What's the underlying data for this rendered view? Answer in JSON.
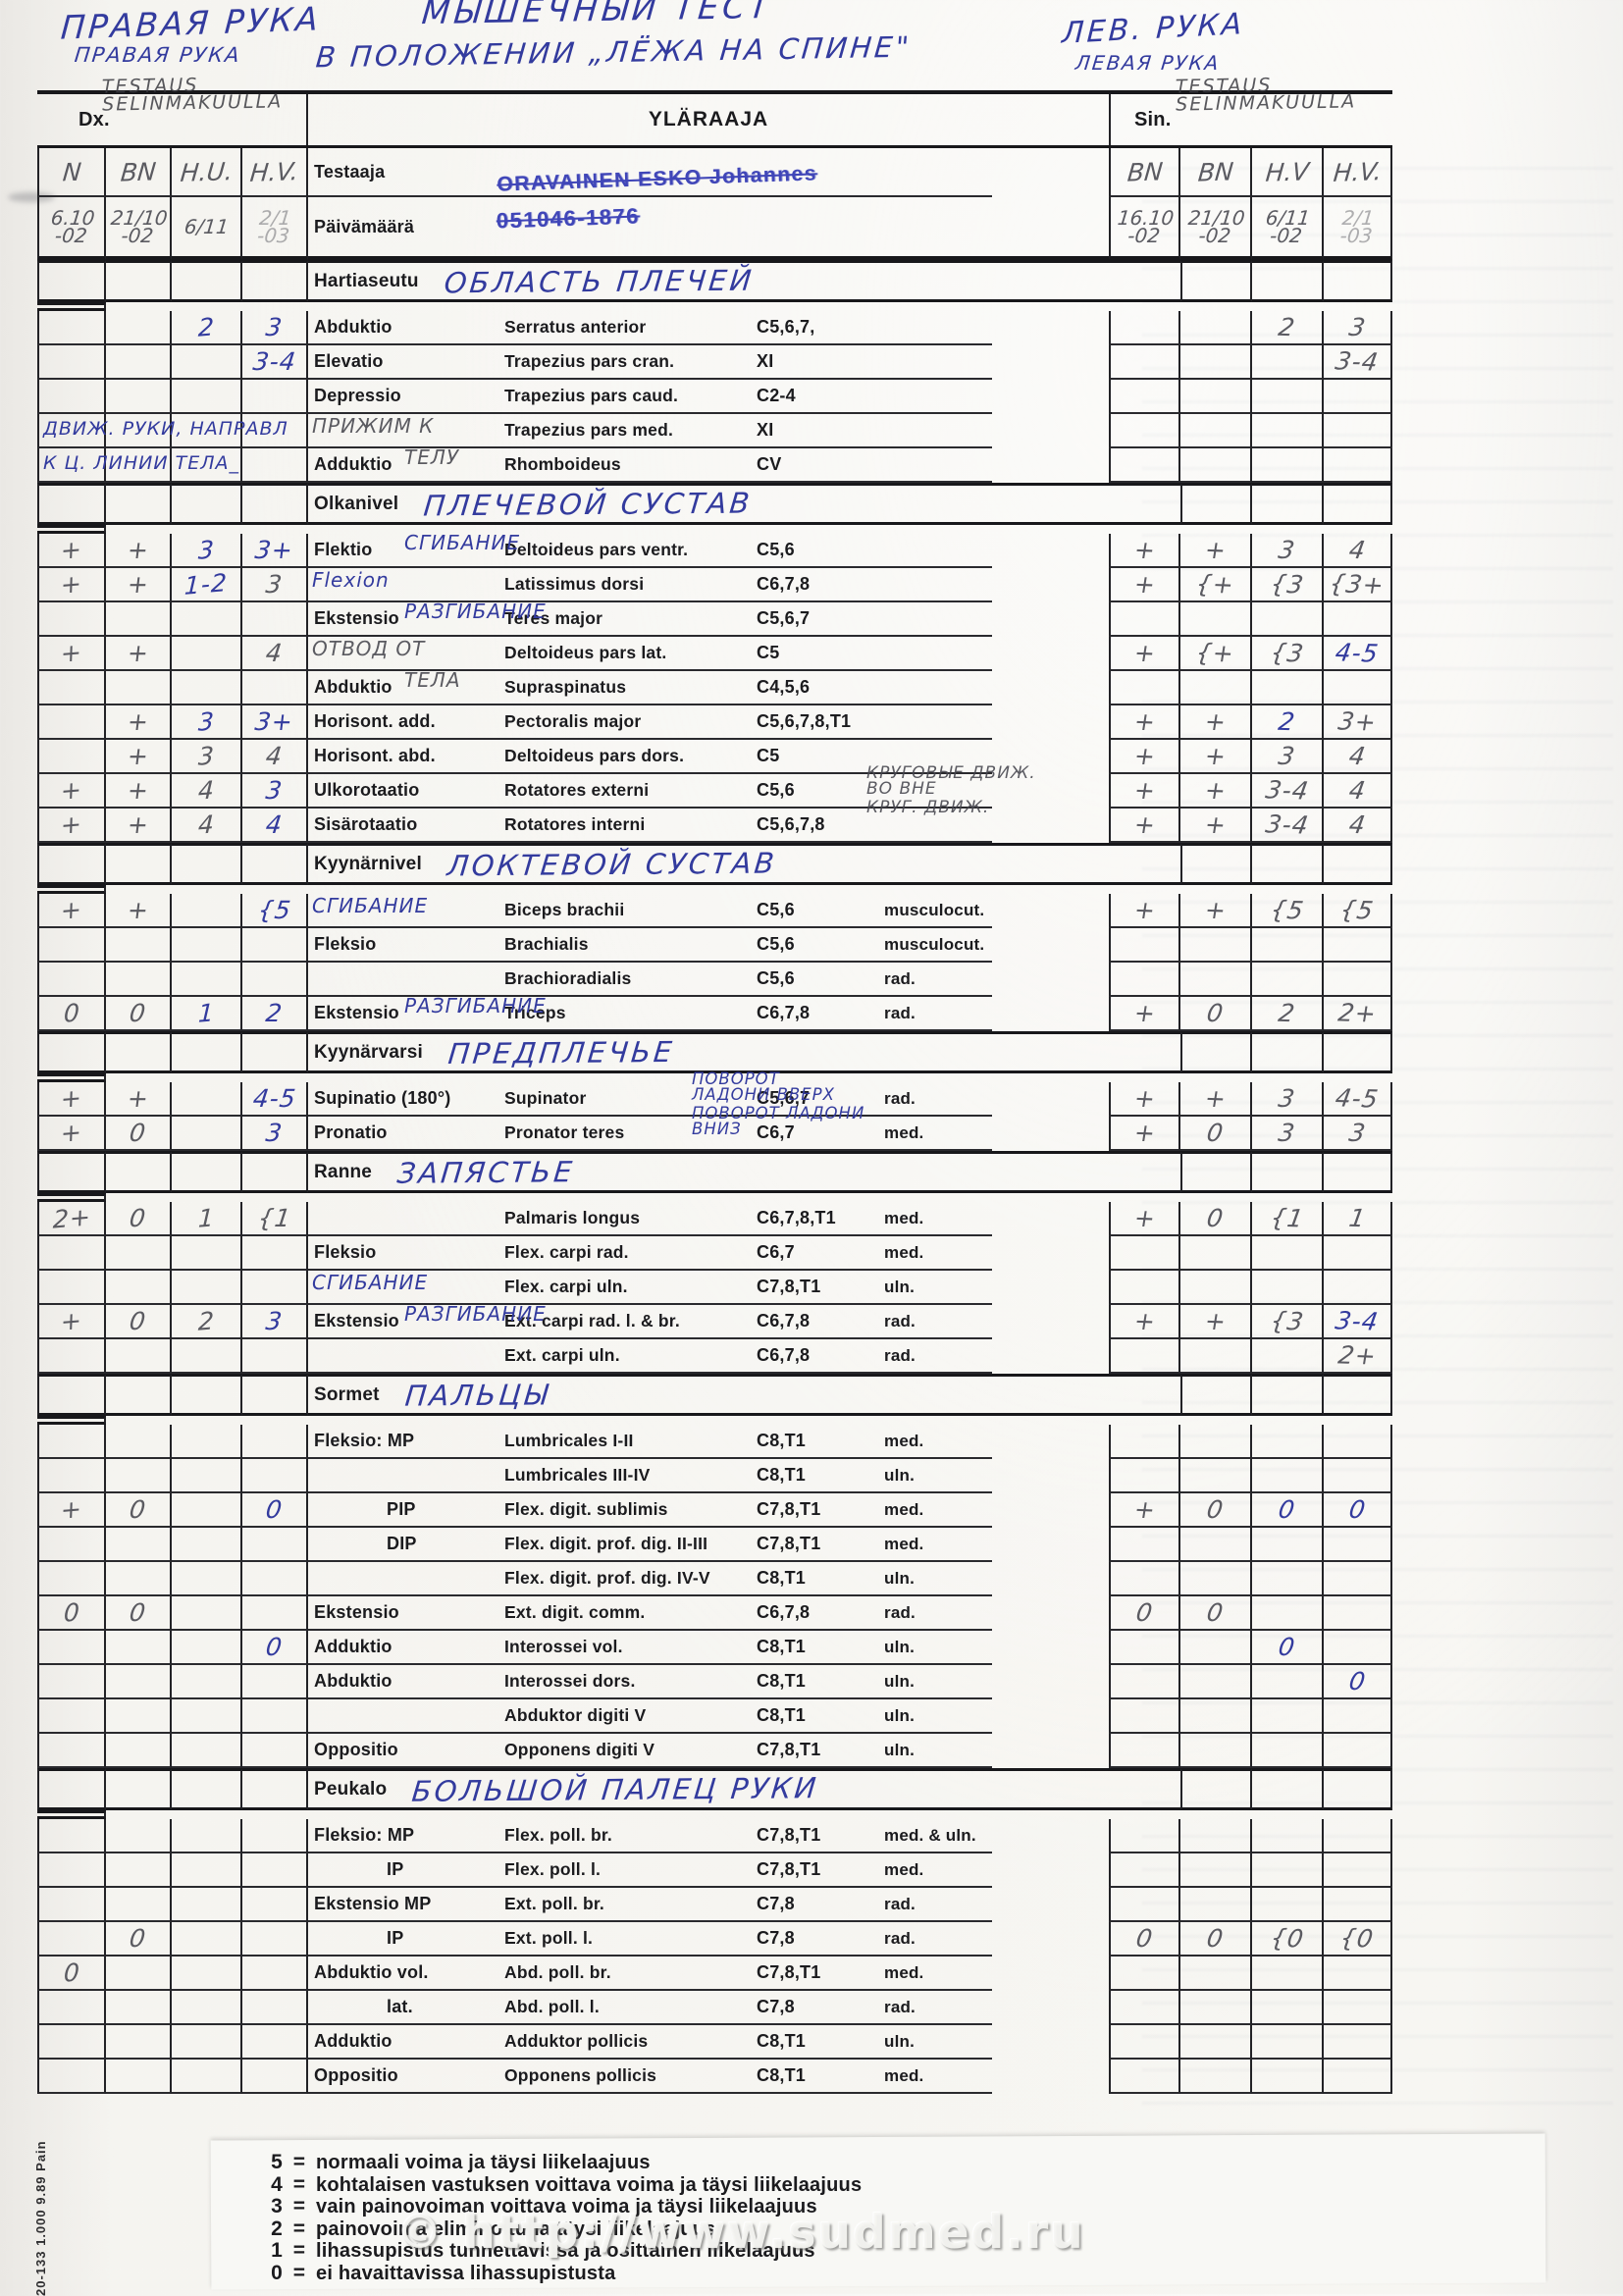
{
  "meta": {
    "watermark": "© http://www.sudmed.ru",
    "side_code": "20-133 1.000 9.89 Pain"
  },
  "handwritten_header": {
    "title_line1": "МЫШЕЧНЫЙ ТЕСТ",
    "title_line2": "В ПОЛОЖЕНИИ „ЛЁЖА НА СПИНЕ\"",
    "right_hand_big": "ПРАВАЯ РУКА",
    "right_hand_small": "ПРАВАЯ РУКА",
    "left_hand_big": "ЛЕВ. РУКА",
    "left_hand_small": "ЛЕВАЯ РУКА"
  },
  "form_header": {
    "dx_label": "Dx.",
    "sin_label": "Sin.",
    "form_title": "YLÄRAAJA",
    "dx_note": "TESTAUS\nSELINMAKUULLA",
    "sin_note": "TESTAUS\nSELINMAKUULLA",
    "tester_label": "Testaaja",
    "tester_stamp": "ORAVAINEN ESKO Johannes",
    "id_stamp": "051046-1876",
    "date_label": "Päivämäärä",
    "left_columns": [
      "N",
      "BN",
      "H.U.",
      "H.V."
    ],
    "right_columns": [
      "BN",
      "BN",
      "H.V",
      "H.V."
    ],
    "left_dates": [
      "6.10\n-02",
      "21/10\n-02",
      "6/11",
      "2/1 -03"
    ],
    "right_dates": [
      "16.10\n-02",
      "21/10\n-02",
      "6/11\n-02",
      "2/1 -03"
    ]
  },
  "sections": [
    {
      "title": "Hartiaseutu",
      "ru": "ОБЛАСТЬ ПЛЕЧЕЙ",
      "rows": [
        {
          "move": "Abduktio",
          "muscle": "Serratus anterior",
          "roots": "C5,6,7,",
          "L": [
            "",
            "",
            "~2",
            "~3"
          ],
          "R": [
            "",
            "",
            "2",
            "3"
          ]
        },
        {
          "move": "Elevatio",
          "muscle": "Trapezius pars cran.",
          "roots": "XI",
          "L": [
            "",
            "",
            "",
            "~3-4"
          ],
          "R": [
            "",
            "",
            "",
            "3-4"
          ]
        },
        {
          "move": "Depressio",
          "muscle": "Trapezius pars caud.",
          "roots": "C2-4"
        },
        {
          "ann": "g:ПРИЖИМ К",
          "muscle": "Trapezius pars med.",
          "roots": "XI",
          "lnote": "ДВИЖ. РУКИ, НАПРАВЛ"
        },
        {
          "move": "Adduktio",
          "ann": "g:ТЕЛУ",
          "muscle": "Rhomboideus",
          "roots": "CV",
          "lnote": "К Ц. ЛИНИИ ТЕЛА_"
        }
      ]
    },
    {
      "title": "Olkanivel",
      "ru": "ПЛЕЧЕВОЙ СУСТАВ",
      "rows": [
        {
          "move": "Flektio",
          "ann": "СГИБАНИЕ",
          "muscle": "Deltoideus pars ventr.",
          "roots": "C5,6",
          "L": [
            "+",
            "+",
            "~3",
            "~3+"
          ],
          "R": [
            "+",
            "+",
            "3",
            "4"
          ]
        },
        {
          "ann": "Flexion",
          "muscle": "Latissimus dorsi",
          "roots": "C6,7,8",
          "L": [
            "+",
            "+",
            "~1-2",
            "3"
          ],
          "R": [
            "+",
            "{+",
            "{3",
            "{3+"
          ]
        },
        {
          "move": "Ekstensio",
          "ann": "РАЗГИБАНИЕ",
          "muscle": "Teres major",
          "roots": "C5,6,7"
        },
        {
          "ann": "g:ОТВОД ОТ",
          "muscle": "Deltoideus pars lat.",
          "roots": "C5",
          "L": [
            "+",
            "+",
            "",
            "4"
          ],
          "R": [
            "+",
            "{+",
            "{3",
            "~4-5"
          ]
        },
        {
          "move": "Abduktio",
          "ann": "g:ТЕЛА",
          "muscle": "Supraspinatus",
          "roots": "C4,5,6"
        },
        {
          "move": "Horisont. add.",
          "muscle": "Pectoralis major",
          "roots": "C5,6,7,8,T1",
          "L": [
            "",
            "+",
            "~3",
            "~3+"
          ],
          "R": [
            "+",
            "+",
            "~2",
            "3+"
          ]
        },
        {
          "move": "Horisont. abd.",
          "muscle": "Deltoideus pars dors.",
          "roots": "C5",
          "L": [
            "",
            "+",
            "3",
            "4"
          ],
          "R": [
            "+",
            "+",
            "3",
            "4"
          ]
        },
        {
          "move": "Ulkorotaatio",
          "muscle": "Rotatores externi",
          "roots": "C5,6",
          "gnote": "КРУГОВЫЕ ДВИЖ.\nВО ВНЕ",
          "L": [
            "+",
            "+",
            "4",
            "~3"
          ],
          "R": [
            "+",
            "+",
            "3-4",
            "4"
          ]
        },
        {
          "move": "Sisärotaatio",
          "muscle": "Rotatores interni",
          "roots": "C5,6,7,8",
          "gnote": "КРУГ. ДВИЖ.",
          "L": [
            "+",
            "+",
            "4",
            "~4"
          ],
          "R": [
            "+",
            "+",
            "3-4",
            "4"
          ]
        }
      ]
    },
    {
      "title": "Kyynärnivel",
      "ru": "ЛОКТЕВОЙ СУСТАВ",
      "rows": [
        {
          "ann": "СГИБАНИЕ",
          "muscle": "Biceps brachii",
          "roots": "C5,6",
          "branch": "musculocut.",
          "L": [
            "+",
            "+",
            "",
            "~{5"
          ],
          "R": [
            "+",
            "+",
            "{5",
            "{5"
          ]
        },
        {
          "move": "Fleksio",
          "muscle": "Brachialis",
          "roots": "C5,6",
          "branch": "musculocut."
        },
        {
          "muscle": "Brachioradialis",
          "roots": "C5,6",
          "branch": "rad."
        },
        {
          "move": "Ekstensio",
          "ann": "РАЗГИБАНИЕ",
          "muscle": "Triceps",
          "roots": "C6,7,8",
          "branch": "rad.",
          "L": [
            "0",
            "0",
            "~1",
            "~2"
          ],
          "R": [
            "+",
            "0",
            "2",
            "2+"
          ]
        }
      ]
    },
    {
      "title": "Kyynärvarsi",
      "ru": "ПРЕДПЛЕЧЬЕ",
      "rows": [
        {
          "move": "Supinatio (180°)",
          "muscle": "Supinator",
          "roots": "C5,6,7",
          "branch": "rad.",
          "note": "ПОВОРОТ\nЛАДОНИ ВВЕРХ",
          "L": [
            "+",
            "+",
            "",
            "~4-5"
          ],
          "R": [
            "+",
            "+",
            "3",
            "4-5"
          ]
        },
        {
          "move": "Pronatio",
          "muscle": "Pronator teres",
          "roots": "C6,7",
          "branch": "med.",
          "note": "ПОВОРОТ ЛАДОНИ\nВНИЗ",
          "L": [
            "+",
            "0",
            "",
            "~3"
          ],
          "R": [
            "+",
            "0",
            "3",
            "3"
          ]
        }
      ]
    },
    {
      "title": "Ranne",
      "ru": "ЗАПЯСТЬЕ",
      "rows": [
        {
          "muscle": "Palmaris longus",
          "roots": "C6,7,8,T1",
          "branch": "med.",
          "L": [
            "2+",
            "0",
            "1",
            "{1"
          ],
          "R": [
            "+",
            "0",
            "{1",
            "1"
          ]
        },
        {
          "move": "Fleksio",
          "muscle": "Flex. carpi rad.",
          "roots": "C6,7",
          "branch": "med."
        },
        {
          "ann": "СГИБАНИЕ",
          "muscle": "Flex. carpi uln.",
          "roots": "C7,8,T1",
          "branch": "uln."
        },
        {
          "move": "Ekstensio",
          "ann": "РАЗГИБАНИЕ",
          "muscle": "Ext. carpi rad. l. & br.",
          "roots": "C6,7,8",
          "branch": "rad.",
          "L": [
            "+",
            "0",
            "2",
            "~3"
          ],
          "R": [
            "+",
            "+",
            "{3",
            "~3-4"
          ]
        },
        {
          "muscle": "Ext. carpi uln.",
          "roots": "C6,7,8",
          "branch": "rad.",
          "R": [
            "",
            "",
            "",
            "2+"
          ]
        }
      ]
    },
    {
      "title": "Sormet",
      "ru": "ПАЛЬЦЫ",
      "rows": [
        {
          "move": "Fleksio: MP",
          "muscle": "Lumbricales I-II",
          "roots": "C8,T1",
          "branch": "med."
        },
        {
          "muscle": "Lumbricales III-IV",
          "roots": "C8,T1",
          "branch": "uln."
        },
        {
          "move": "PIP",
          "muscle": "Flex. digit. sublimis",
          "roots": "C7,8,T1",
          "branch": "med.",
          "L": [
            "+",
            "0",
            "",
            "~0"
          ],
          "R": [
            "+",
            "0",
            "~0",
            "~0"
          ]
        },
        {
          "move": "DIP",
          "muscle": "Flex. digit. prof. dig. II-III",
          "roots": "C7,8,T1",
          "branch": "med."
        },
        {
          "muscle": "Flex. digit. prof. dig. IV-V",
          "roots": "C8,T1",
          "branch": "uln."
        },
        {
          "move": "Ekstensio",
          "muscle": "Ext. digit. comm.",
          "roots": "C6,7,8",
          "branch": "rad.",
          "L": [
            "0",
            "0",
            "",
            ""
          ],
          "R": [
            "0",
            "0",
            "",
            ""
          ]
        },
        {
          "move": "Adduktio",
          "muscle": "Interossei vol.",
          "roots": "C8,T1",
          "branch": "uln.",
          "L": [
            "",
            "",
            "",
            "~0"
          ],
          "R": [
            "",
            "",
            "~0",
            ""
          ]
        },
        {
          "move": "Abduktio",
          "muscle": "Interossei dors.",
          "roots": "C8,T1",
          "branch": "uln.",
          "R": [
            "",
            "",
            "",
            "~0"
          ]
        },
        {
          "muscle": "Abduktor digiti V",
          "roots": "C8,T1",
          "branch": "uln."
        },
        {
          "move": "Oppositio",
          "muscle": "Opponens digiti V",
          "roots": "C7,8,T1",
          "branch": "uln."
        }
      ]
    },
    {
      "title": "Peukalo",
      "ru": "БОЛЬШОЙ ПАЛЕЦ РУКИ",
      "rows": [
        {
          "move": "Fleksio: MP",
          "muscle": "Flex. poll. br.",
          "roots": "C7,8,T1",
          "branch": "med. & uln."
        },
        {
          "move": "IP",
          "muscle": "Flex. poll. l.",
          "roots": "C7,8,T1",
          "branch": "med."
        },
        {
          "move": "Ekstensio MP",
          "muscle": "Ext. poll. br.",
          "roots": "C7,8",
          "branch": "rad."
        },
        {
          "move": "IP",
          "muscle": "Ext. poll. l.",
          "roots": "C7,8",
          "branch": "rad.",
          "L": [
            "",
            "0",
            "",
            ""
          ],
          "R": [
            "0",
            "0",
            "{0",
            "{0"
          ]
        },
        {
          "move": "Abduktio  vol.",
          "muscle": "Abd. poll. br.",
          "roots": "C7,8,T1",
          "branch": "med.",
          "L": [
            "0",
            "",
            "",
            ""
          ]
        },
        {
          "move": "lat.",
          "muscle": "Abd. poll. l.",
          "roots": "C7,8",
          "branch": "rad."
        },
        {
          "move": "Adduktio",
          "muscle": "Adduktor pollicis",
          "roots": "C8,T1",
          "branch": "uln."
        },
        {
          "move": "Oppositio",
          "muscle": "Opponens pollicis",
          "roots": "C8,T1",
          "branch": "med."
        }
      ]
    }
  ],
  "legend": [
    {
      "num": "5",
      "text": "normaali voima ja täysi liikelaajuus"
    },
    {
      "num": "4",
      "text": "kohtalaisen vastuksen voittava voima ja täysi liikelaajuus"
    },
    {
      "num": "3",
      "text": "vain painovoiman voittava voima ja täysi liikelaajuus"
    },
    {
      "num": "2",
      "text": "painovoima eliminoituna täysi liikelaajuus"
    },
    {
      "num": "1",
      "text": "lihassupistus tunnettavissa ja osittainen liikelaajuus"
    },
    {
      "num": "0",
      "text": "ei havaittavissa lihassupistusta"
    }
  ]
}
